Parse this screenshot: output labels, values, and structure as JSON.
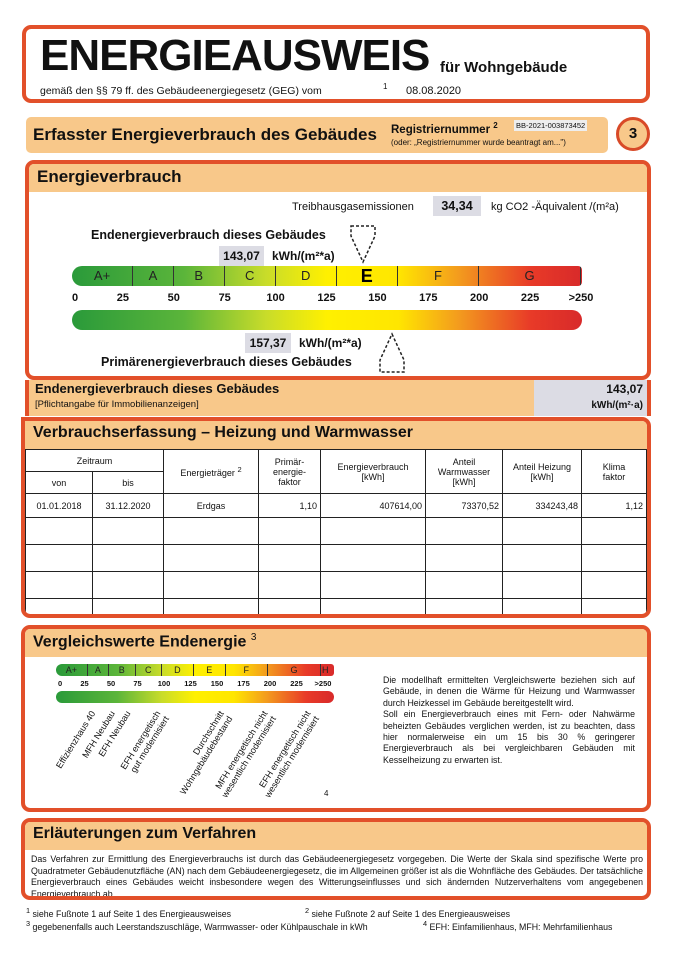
{
  "header": {
    "title": "ENERGIEAUSWEIS",
    "subtitle": "für Wohngebäude",
    "legal": "gemäß den §§ 79 ff. des Gebäudeenergiegesetz (GEG) vom",
    "legal_sup": "1",
    "date": "08.08.2020"
  },
  "section_bar": {
    "title": "Erfasster Energieverbrauch des Gebäudes",
    "reg_label": "Registriernummer",
    "reg_sup": "2",
    "reg_value": "BB-2021-003873452",
    "reg_note": "(oder: „Registriernummer wurde beantragt am...\")",
    "page": "3"
  },
  "energy": {
    "title": "Energieverbrauch",
    "ghg_label": "Treibhausgasemissionen",
    "ghg_value": "34,34",
    "ghg_unit": "kg CO2 -Äquivalent /(m²a)",
    "end_label": "Endenergieverbrauch dieses Gebäudes",
    "end_value": "143,07",
    "end_unit": "kWh/(m²*a)",
    "end_numeric": 143.07,
    "primary_label": "Primärenergieverbrauch dieses Gebäudes",
    "primary_value": "157,37",
    "primary_unit": "kWh/(m²*a)",
    "primary_numeric": 157.37,
    "classes": [
      "A+",
      "A",
      "B",
      "C",
      "D",
      "E",
      "F",
      "G",
      "H"
    ],
    "current_class": "E",
    "ticks": [
      "0",
      "25",
      "50",
      "75",
      "100",
      "125",
      "150",
      "175",
      "200",
      "225",
      ">250"
    ]
  },
  "mandatory": {
    "title": "Endenergieverbrauch dieses Gebäudes",
    "note": "[Pflichtangabe für Immobilienanzeigen]",
    "value": "143,07",
    "unit": "kWh/(m²·a)"
  },
  "consumption": {
    "title": "Verbrauchserfassung – Heizung und Warmwasser",
    "headers": {
      "period": "Zeitraum",
      "from": "von",
      "to": "bis",
      "carrier": "Energieträger",
      "carrier_sup": "2",
      "pef": "Primär-\nenergie-\nfaktor",
      "usage": "Energieverbrauch\n[kWh]",
      "ww": "Anteil\nWarmwasser\n[kWh]",
      "heat": "Anteil Heizung\n[kWh]",
      "climate": "Klima\nfaktor"
    },
    "rows": [
      {
        "from": "01.01.2018",
        "to": "31.12.2020",
        "carrier": "Erdgas",
        "pef": "1,10",
        "usage": "407614,00",
        "ww": "73370,52",
        "heat": "334243,48",
        "climate": "1,12"
      }
    ]
  },
  "comparison": {
    "title": "Vergleichswerte Endenergie",
    "title_sup": "3",
    "footnote_mark": "4",
    "labels": [
      "Effizienzhaus 40",
      "MFH Neubau",
      "EFH Neubau",
      "EFH energetisch\ngut modernisiert",
      "Durchschnitt\nWohngebäudebestand",
      "MFH energetisch nicht\nwesentlich modernisiert",
      "EFH energetisch nicht\nwesentlich modernisiert"
    ],
    "text": "Die modellhaft ermittelten Vergleichswerte beziehen sich auf Gebäude, in denen die Wärme für Heizung und Warmwasser durch Heizkessel im Gebäude bereitgestellt wird.\nSoll ein Energieverbrauch eines mit Fern- oder Nahwärme beheizten Gebäudes verglichen werden, ist zu beachten, dass hier normalerweise ein um 15 bis 30 % geringerer Energieverbrauch als bei vergleichbaren Gebäuden mit Kesselheizung zu erwarten ist."
  },
  "explanation": {
    "title": "Erläuterungen zum Verfahren",
    "text": "Das Verfahren zur Ermittlung des Energieverbrauchs ist durch das Gebäudeenergiegesetz vorgegeben. Die Werte der Skala sind spezifische Werte pro Quadratmeter Gebäudenutzfläche (AN) nach dem Gebäudeenergiegesetz, die im Allgemeinen größer ist als die Wohnfläche des Gebäudes. Der tatsächliche Energieverbrauch eines Gebäudes weicht insbesondere wegen des Witterungseinflusses und sich ändernden Nutzerverhaltens vom angegebenen Energieverbrauch ab."
  },
  "footnotes": [
    {
      "n": "1",
      "t": "siehe Fußnote 1 auf Seite 1 des Energieausweises"
    },
    {
      "n": "2",
      "t": "siehe Fußnote 2 auf Seite 1 des Energieausweises"
    },
    {
      "n": "3",
      "t": "gegebenenfalls auch Leerstandszuschläge, Warmwasser- oder Kühlpauschale in kWh"
    },
    {
      "n": "4",
      "t": "EFH: Einfamilienhaus, MFH: Mehrfamilienhaus"
    }
  ]
}
